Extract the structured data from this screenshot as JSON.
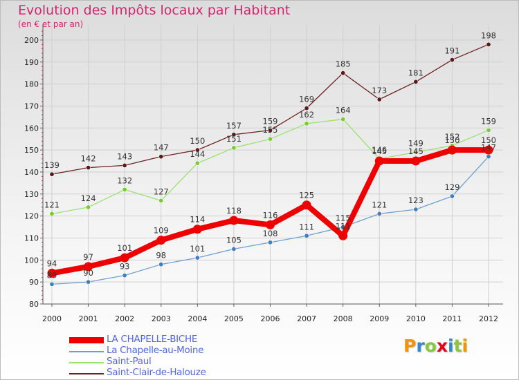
{
  "chart_data": {
    "type": "line",
    "title": "Evolution des Impôts locaux par Habitant",
    "subtitle": "(en € et par an)",
    "xlabel": "",
    "ylabel": "",
    "categories": [
      "2000",
      "2001",
      "2002",
      "2003",
      "2004",
      "2005",
      "2006",
      "2007",
      "2008",
      "2009",
      "2010",
      "2011",
      "2012"
    ],
    "y_ticks": [
      80,
      90,
      100,
      110,
      120,
      130,
      140,
      150,
      160,
      170,
      180,
      190,
      200
    ],
    "ylim": [
      80,
      205
    ],
    "grid": true,
    "legend_position": "bottom-left",
    "series": [
      {
        "name": "Saint-Clair-de-Halouze",
        "color": "#6b1f22",
        "marker": "#5a1a1c",
        "values": [
          139,
          142,
          143,
          147,
          150,
          157,
          159,
          169,
          185,
          173,
          181,
          191,
          198
        ]
      },
      {
        "name": "Saint-Paul",
        "color": "#9be072",
        "marker": "#77cc33",
        "values": [
          121,
          124,
          132,
          127,
          144,
          151,
          155,
          162,
          164,
          146,
          149,
          152,
          159
        ]
      },
      {
        "name": "La Chapelle-au-Moine",
        "color": "#6e9fce",
        "marker": "#3d7fc0",
        "values": [
          89,
          90,
          93,
          98,
          101,
          105,
          108,
          111,
          115,
          121,
          123,
          129,
          147
        ]
      },
      {
        "name": "LA CHAPELLE-BICHE",
        "color": "#ee0000",
        "marker": "#ee0000",
        "values": [
          94,
          97,
          101,
          109,
          114,
          118,
          116,
          125,
          111,
          145,
          145,
          150,
          150
        ]
      }
    ],
    "legend": [
      {
        "name": "LA CHAPELLE-BICHE",
        "color": "#ee0000"
      },
      {
        "name": "La Chapelle-au-Moine",
        "color": "#6e9fce"
      },
      {
        "name": "Saint-Paul",
        "color": "#9be072"
      },
      {
        "name": "Saint-Clair-de-Halouze",
        "color": "#6b1f22"
      }
    ],
    "legend_text_color": "#5566dd"
  },
  "brand": {
    "letters": [
      "P",
      "r",
      "o",
      "x",
      "i",
      "t",
      "i"
    ],
    "colors": [
      "#f29400",
      "#3a87c9",
      "#8cc63f",
      "#e2001a",
      "#3a87c9",
      "#8cc63f",
      "#f29400"
    ]
  }
}
